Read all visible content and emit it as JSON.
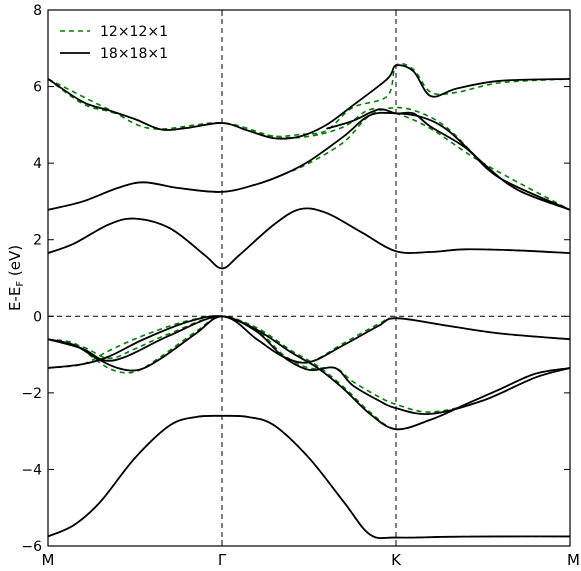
{
  "chart_data": {
    "type": "line",
    "title": "",
    "ylabel": "E-E",
    "ylabel_sub": "F",
    "ylabel_unit": " (eV)",
    "ylim": [
      -6,
      8
    ],
    "yticks": [
      -6,
      -4,
      -2,
      0,
      2,
      4,
      6,
      8
    ],
    "ytick_labels": [
      "−6",
      "−4",
      "−2",
      "0",
      "2",
      "4",
      "6",
      "8"
    ],
    "xlim": [
      0,
      3
    ],
    "xticks": [
      0,
      1,
      2,
      3
    ],
    "xtick_labels": [
      "M",
      "Γ",
      "K",
      "M"
    ],
    "vlines": [
      1,
      2
    ],
    "hlines": [
      0
    ],
    "legend_position": "top-left",
    "series": [
      {
        "name": "12×12×1",
        "style": "dashed",
        "color": "#008000",
        "bands": [
          [
            [
              0,
              -5.75
            ],
            [
              0.15,
              -5.45
            ],
            [
              0.3,
              -4.85
            ],
            [
              0.5,
              -3.7
            ],
            [
              0.7,
              -2.85
            ],
            [
              0.85,
              -2.63
            ],
            [
              1,
              -2.6
            ],
            [
              1.15,
              -2.63
            ],
            [
              1.3,
              -2.85
            ],
            [
              1.5,
              -3.7
            ],
            [
              1.7,
              -4.85
            ],
            [
              1.85,
              -5.7
            ],
            [
              2,
              -5.78
            ],
            [
              2.3,
              -5.76
            ],
            [
              2.6,
              -5.75
            ],
            [
              3,
              -5.75
            ]
          ],
          [
            [
              0,
              -1.35
            ],
            [
              0.2,
              -1.25
            ],
            [
              0.35,
              -0.9
            ],
            [
              0.55,
              -0.5
            ],
            [
              0.8,
              -0.12
            ],
            [
              1,
              0
            ],
            [
              1.2,
              -0.3
            ],
            [
              1.4,
              -0.9
            ],
            [
              1.55,
              -1.3
            ],
            [
              1.7,
              -1.85
            ],
            [
              1.85,
              -2.5
            ],
            [
              2,
              -2.95
            ],
            [
              2.2,
              -2.7
            ],
            [
              2.4,
              -2.3
            ],
            [
              2.6,
              -1.9
            ],
            [
              2.8,
              -1.5
            ],
            [
              3,
              -1.35
            ]
          ],
          [
            [
              0,
              -0.6
            ],
            [
              0.15,
              -0.7
            ],
            [
              0.25,
              -1.05
            ],
            [
              0.37,
              -1.4
            ],
            [
              0.5,
              -1.45
            ],
            [
              0.65,
              -1.05
            ],
            [
              0.85,
              -0.4
            ],
            [
              1,
              0
            ],
            [
              1.2,
              -0.35
            ],
            [
              1.35,
              -1.0
            ],
            [
              1.5,
              -1.35
            ],
            [
              1.65,
              -1.35
            ],
            [
              1.75,
              -1.7
            ],
            [
              1.9,
              -2.1
            ],
            [
              2,
              -2.3
            ],
            [
              2.2,
              -2.5
            ],
            [
              2.5,
              -2.2
            ],
            [
              2.8,
              -1.6
            ],
            [
              3,
              -1.35
            ]
          ],
          [
            [
              0,
              -0.6
            ],
            [
              0.2,
              -0.8
            ],
            [
              0.35,
              -1.1
            ],
            [
              0.5,
              -0.85
            ],
            [
              0.7,
              -0.45
            ],
            [
              1,
              0
            ],
            [
              1.2,
              -0.6
            ],
            [
              1.35,
              -1.05
            ],
            [
              1.5,
              -1.2
            ],
            [
              1.7,
              -0.7
            ],
            [
              1.9,
              -0.2
            ],
            [
              2,
              -0.05
            ],
            [
              2.3,
              -0.25
            ],
            [
              2.6,
              -0.45
            ],
            [
              3,
              -0.6
            ]
          ],
          [
            [
              0,
              1.65
            ],
            [
              0.15,
              1.9
            ],
            [
              0.35,
              2.4
            ],
            [
              0.5,
              2.55
            ],
            [
              0.7,
              2.3
            ],
            [
              0.9,
              1.6
            ],
            [
              1,
              1.25
            ],
            [
              1.1,
              1.6
            ],
            [
              1.3,
              2.4
            ],
            [
              1.45,
              2.8
            ],
            [
              1.6,
              2.7
            ],
            [
              1.8,
              2.2
            ],
            [
              2,
              1.7
            ],
            [
              2.2,
              1.68
            ],
            [
              2.4,
              1.75
            ],
            [
              2.7,
              1.72
            ],
            [
              3,
              1.65
            ]
          ],
          [
            [
              0,
              2.78
            ],
            [
              0.2,
              3.0
            ],
            [
              0.4,
              3.35
            ],
            [
              0.55,
              3.5
            ],
            [
              0.75,
              3.35
            ],
            [
              1,
              3.25
            ],
            [
              1.2,
              3.45
            ],
            [
              1.35,
              3.7
            ],
            [
              1.5,
              4.0
            ],
            [
              1.7,
              4.55
            ],
            [
              1.85,
              5.25
            ],
            [
              2,
              5.45
            ],
            [
              2.15,
              5.3
            ],
            [
              2.3,
              4.9
            ],
            [
              2.5,
              4.0
            ],
            [
              2.7,
              3.3
            ],
            [
              3,
              2.78
            ]
          ],
          [
            [
              0,
              6.2
            ],
            [
              0.2,
              5.55
            ],
            [
              0.35,
              5.35
            ],
            [
              0.5,
              5.15
            ],
            [
              0.65,
              4.88
            ],
            [
              0.8,
              4.92
            ],
            [
              1,
              5.05
            ],
            [
              1.15,
              4.85
            ],
            [
              1.3,
              4.7
            ],
            [
              1.45,
              4.75
            ],
            [
              1.6,
              4.85
            ],
            [
              1.75,
              5.45
            ],
            [
              1.95,
              5.75
            ],
            [
              2,
              6.55
            ],
            [
              2.1,
              6.45
            ],
            [
              2.2,
              5.85
            ],
            [
              2.35,
              5.85
            ],
            [
              2.6,
              6.1
            ],
            [
              3,
              6.2
            ]
          ],
          [
            [
              0,
              6.2
            ],
            [
              0.35,
              5.4
            ],
            [
              0.6,
              4.9
            ],
            [
              1,
              5.05
            ],
            [
              1.3,
              4.7
            ],
            [
              1.5,
              4.7
            ],
            [
              1.7,
              4.95
            ],
            [
              1.85,
              5.4
            ],
            [
              2,
              5.3
            ],
            [
              2.2,
              4.9
            ],
            [
              2.5,
              4.0
            ],
            [
              3,
              2.78
            ]
          ]
        ]
      },
      {
        "name": "18×18×1",
        "style": "solid",
        "color": "#000000",
        "bands": [
          [
            [
              0,
              -5.75
            ],
            [
              0.15,
              -5.45
            ],
            [
              0.3,
              -4.85
            ],
            [
              0.5,
              -3.7
            ],
            [
              0.7,
              -2.85
            ],
            [
              0.85,
              -2.63
            ],
            [
              1,
              -2.6
            ],
            [
              1.15,
              -2.63
            ],
            [
              1.3,
              -2.85
            ],
            [
              1.5,
              -3.7
            ],
            [
              1.7,
              -4.85
            ],
            [
              1.85,
              -5.7
            ],
            [
              2,
              -5.78
            ],
            [
              2.3,
              -5.76
            ],
            [
              2.6,
              -5.75
            ],
            [
              3,
              -5.75
            ]
          ],
          [
            [
              0,
              -1.35
            ],
            [
              0.2,
              -1.25
            ],
            [
              0.35,
              -1.05
            ],
            [
              0.55,
              -0.6
            ],
            [
              0.8,
              -0.15
            ],
            [
              1,
              0
            ],
            [
              1.2,
              -0.35
            ],
            [
              1.4,
              -0.95
            ],
            [
              1.55,
              -1.35
            ],
            [
              1.7,
              -1.9
            ],
            [
              1.85,
              -2.55
            ],
            [
              2,
              -2.95
            ],
            [
              2.2,
              -2.7
            ],
            [
              2.4,
              -2.3
            ],
            [
              2.6,
              -1.9
            ],
            [
              2.8,
              -1.5
            ],
            [
              3,
              -1.35
            ]
          ],
          [
            [
              0,
              -0.6
            ],
            [
              0.15,
              -0.75
            ],
            [
              0.28,
              -1.1
            ],
            [
              0.4,
              -1.35
            ],
            [
              0.52,
              -1.4
            ],
            [
              0.65,
              -1.1
            ],
            [
              0.85,
              -0.45
            ],
            [
              1,
              0
            ],
            [
              1.2,
              -0.4
            ],
            [
              1.35,
              -1.05
            ],
            [
              1.5,
              -1.4
            ],
            [
              1.65,
              -1.35
            ],
            [
              1.75,
              -1.8
            ],
            [
              1.9,
              -2.2
            ],
            [
              2,
              -2.4
            ],
            [
              2.2,
              -2.55
            ],
            [
              2.5,
              -2.2
            ],
            [
              2.8,
              -1.6
            ],
            [
              3,
              -1.35
            ]
          ],
          [
            [
              0,
              -0.6
            ],
            [
              0.2,
              -0.85
            ],
            [
              0.32,
              -1.15
            ],
            [
              0.45,
              -1.05
            ],
            [
              0.7,
              -0.5
            ],
            [
              1,
              0
            ],
            [
              1.2,
              -0.6
            ],
            [
              1.35,
              -1.05
            ],
            [
              1.5,
              -1.2
            ],
            [
              1.7,
              -0.75
            ],
            [
              1.9,
              -0.25
            ],
            [
              2,
              -0.05
            ],
            [
              2.3,
              -0.25
            ],
            [
              2.6,
              -0.45
            ],
            [
              3,
              -0.6
            ]
          ],
          [
            [
              0,
              1.65
            ],
            [
              0.15,
              1.9
            ],
            [
              0.35,
              2.4
            ],
            [
              0.5,
              2.55
            ],
            [
              0.7,
              2.3
            ],
            [
              0.9,
              1.6
            ],
            [
              1,
              1.25
            ],
            [
              1.1,
              1.6
            ],
            [
              1.3,
              2.4
            ],
            [
              1.45,
              2.8
            ],
            [
              1.6,
              2.7
            ],
            [
              1.8,
              2.2
            ],
            [
              2,
              1.7
            ],
            [
              2.2,
              1.68
            ],
            [
              2.4,
              1.75
            ],
            [
              2.7,
              1.72
            ],
            [
              3,
              1.65
            ]
          ],
          [
            [
              0,
              2.78
            ],
            [
              0.2,
              3.0
            ],
            [
              0.4,
              3.35
            ],
            [
              0.55,
              3.5
            ],
            [
              0.75,
              3.35
            ],
            [
              1,
              3.25
            ],
            [
              1.2,
              3.45
            ],
            [
              1.35,
              3.7
            ],
            [
              1.5,
              4.05
            ],
            [
              1.7,
              4.7
            ],
            [
              1.85,
              5.25
            ],
            [
              2,
              5.3
            ],
            [
              2.15,
              5.2
            ],
            [
              2.3,
              4.85
            ],
            [
              2.5,
              4.0
            ],
            [
              2.7,
              3.3
            ],
            [
              3,
              2.78
            ]
          ],
          [
            [
              0,
              6.2
            ],
            [
              0.2,
              5.6
            ],
            [
              0.35,
              5.38
            ],
            [
              0.5,
              5.15
            ],
            [
              0.65,
              4.88
            ],
            [
              0.8,
              4.92
            ],
            [
              1,
              5.05
            ],
            [
              1.15,
              4.85
            ],
            [
              1.3,
              4.65
            ],
            [
              1.45,
              4.7
            ],
            [
              1.6,
              5.0
            ],
            [
              1.75,
              5.5
            ],
            [
              1.95,
              6.2
            ],
            [
              2,
              6.55
            ],
            [
              2.1,
              6.4
            ],
            [
              2.2,
              5.75
            ],
            [
              2.35,
              5.95
            ],
            [
              2.6,
              6.15
            ],
            [
              3,
              6.2
            ]
          ],
          [
            [
              1.6,
              4.9
            ],
            [
              1.75,
              5.1
            ],
            [
              1.9,
              5.4
            ],
            [
              2,
              5.3
            ],
            [
              2.1,
              5.3
            ],
            [
              2.2,
              4.95
            ],
            [
              2.4,
              4.4
            ],
            [
              2.6,
              3.6
            ],
            [
              3,
              2.78
            ]
          ]
        ]
      }
    ]
  }
}
